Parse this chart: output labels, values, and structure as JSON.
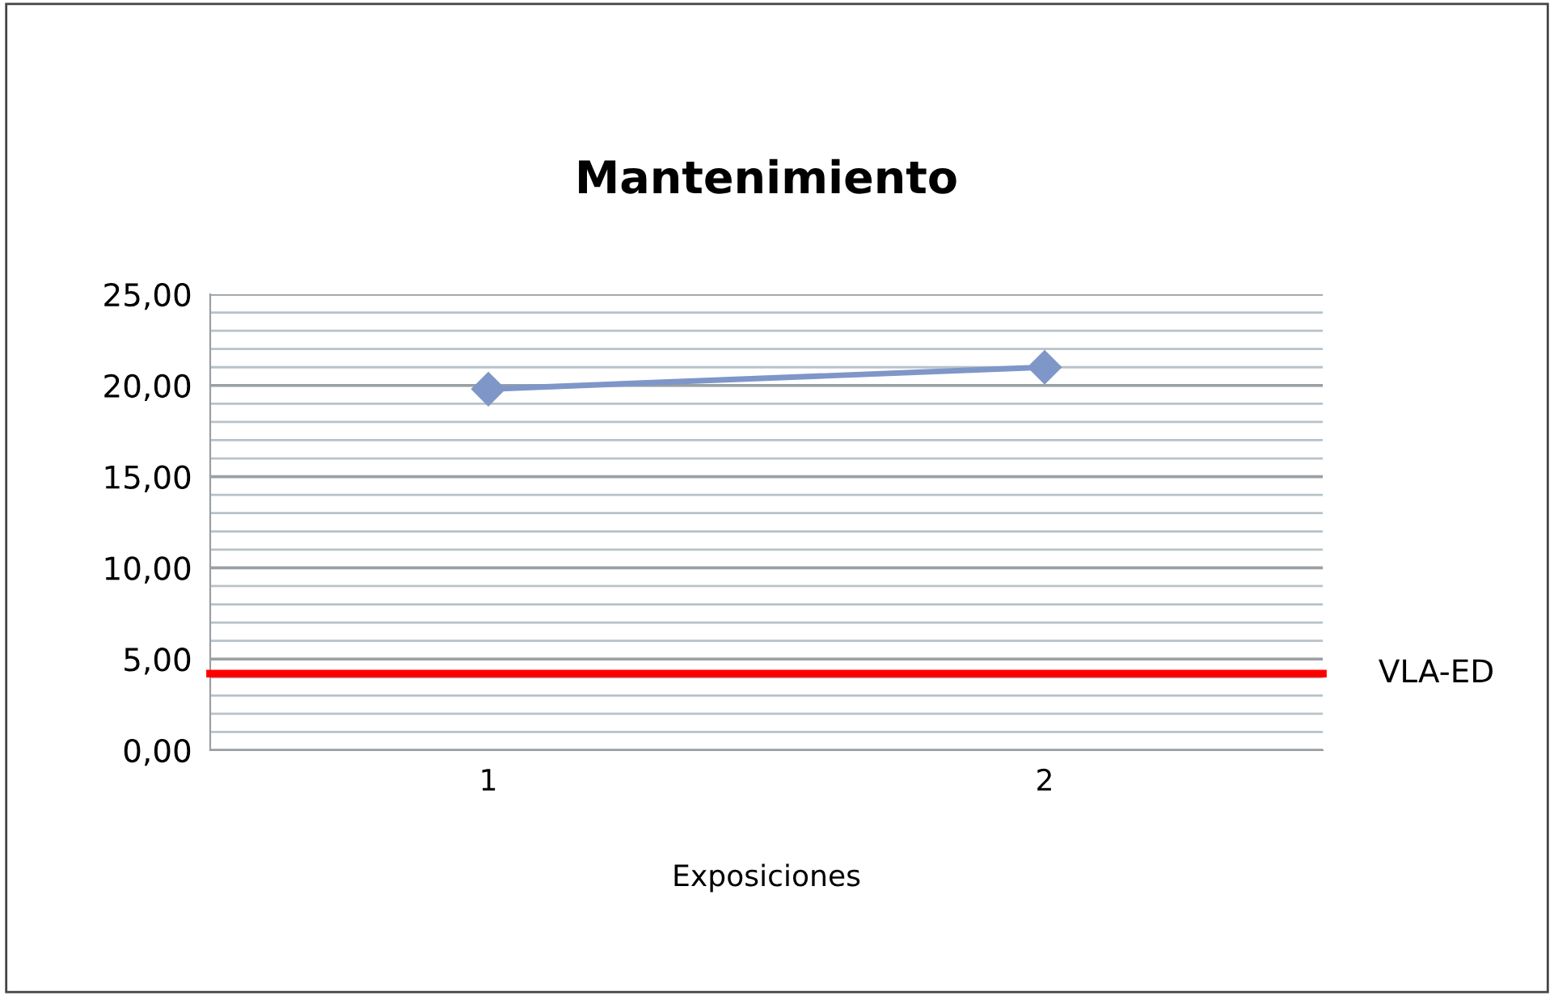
{
  "chart_data": {
    "type": "line",
    "title": "Mantenimiento",
    "xlabel": "Exposiciones",
    "categories": [
      "1",
      "2"
    ],
    "series": [
      {
        "color": "#7f96c8",
        "values": [
          19.8,
          21.0
        ]
      }
    ],
    "marker": "diamond",
    "grid": "y",
    "ylim": [
      0,
      25
    ],
    "yticks": [
      {
        "value": 0,
        "label": "0,00"
      },
      {
        "value": 1,
        "label": null
      },
      {
        "value": 2,
        "label": null
      },
      {
        "value": 3,
        "label": null
      },
      {
        "value": 4,
        "label": null
      },
      {
        "value": 5,
        "label": "5,00"
      },
      {
        "value": 6,
        "label": null
      },
      {
        "value": 7,
        "label": null
      },
      {
        "value": 8,
        "label": null
      },
      {
        "value": 9,
        "label": null
      },
      {
        "value": 10,
        "label": "10,00"
      },
      {
        "value": 11,
        "label": null
      },
      {
        "value": 12,
        "label": null
      },
      {
        "value": 13,
        "label": null
      },
      {
        "value": 14,
        "label": null
      },
      {
        "value": 15,
        "label": "15,00"
      },
      {
        "value": 16,
        "label": null
      },
      {
        "value": 17,
        "label": null
      },
      {
        "value": 18,
        "label": null
      },
      {
        "value": 19,
        "label": null
      },
      {
        "value": 20,
        "label": "20,00"
      },
      {
        "value": 21,
        "label": null
      },
      {
        "value": 22,
        "label": null
      },
      {
        "value": 23,
        "label": null
      },
      {
        "value": 24,
        "label": null
      },
      {
        "value": 25,
        "label": "25,00"
      }
    ],
    "ref_lines": [
      {
        "axis": "y",
        "value": 4.2,
        "label": "VLA-ED",
        "color": "#ff0000"
      }
    ]
  }
}
